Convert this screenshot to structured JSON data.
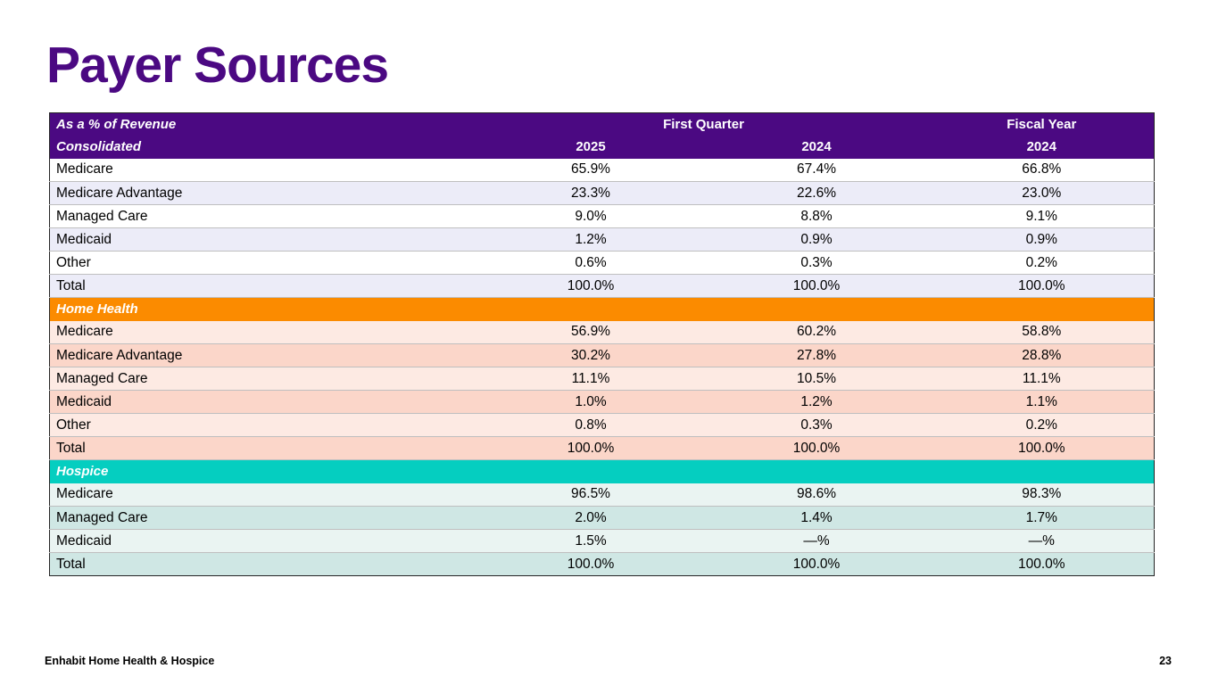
{
  "slide": {
    "title": "Payer Sources",
    "footer": {
      "company": "Enhabit Home Health & Hospice",
      "page_number": "23"
    }
  },
  "table": {
    "corner_label": "As a % of Revenue",
    "row2_label": "Consolidated",
    "column_groups": [
      {
        "label": "First Quarter",
        "span": 2
      },
      {
        "label": "Fiscal Year",
        "span": 1
      }
    ],
    "year_columns": [
      "2025",
      "2024",
      "2024"
    ],
    "sections": [
      {
        "id": "consolidated",
        "band_label": null,
        "rows": [
          {
            "label": "Medicare",
            "values": [
              "65.9%",
              "67.4%",
              "66.8%"
            ]
          },
          {
            "label": "Medicare Advantage",
            "values": [
              "23.3%",
              "22.6%",
              "23.0%"
            ]
          },
          {
            "label": "Managed Care",
            "values": [
              "9.0%",
              "8.8%",
              "9.1%"
            ]
          },
          {
            "label": "Medicaid",
            "values": [
              "1.2%",
              "0.9%",
              "0.9%"
            ]
          },
          {
            "label": "Other",
            "values": [
              "0.6%",
              "0.3%",
              "0.2%"
            ]
          },
          {
            "label": "Total",
            "values": [
              "100.0%",
              "100.0%",
              "100.0%"
            ]
          }
        ]
      },
      {
        "id": "home-health",
        "band_label": "Home Health",
        "rows": [
          {
            "label": "Medicare",
            "values": [
              "56.9%",
              "60.2%",
              "58.8%"
            ]
          },
          {
            "label": "Medicare Advantage",
            "values": [
              "30.2%",
              "27.8%",
              "28.8%"
            ]
          },
          {
            "label": "Managed Care",
            "values": [
              "11.1%",
              "10.5%",
              "11.1%"
            ]
          },
          {
            "label": "Medicaid",
            "values": [
              "1.0%",
              "1.2%",
              "1.1%"
            ]
          },
          {
            "label": "Other",
            "values": [
              "0.8%",
              "0.3%",
              "0.2%"
            ]
          },
          {
            "label": "Total",
            "values": [
              "100.0%",
              "100.0%",
              "100.0%"
            ]
          }
        ]
      },
      {
        "id": "hospice",
        "band_label": "Hospice",
        "rows": [
          {
            "label": "Medicare",
            "values": [
              "96.5%",
              "98.6%",
              "98.3%"
            ]
          },
          {
            "label": "Managed Care",
            "values": [
              "2.0%",
              "1.4%",
              "1.7%"
            ]
          },
          {
            "label": "Medicaid",
            "values": [
              "1.5%",
              "—%",
              "—%"
            ]
          },
          {
            "label": "Total",
            "values": [
              "100.0%",
              "100.0%",
              "100.0%"
            ]
          }
        ]
      }
    ]
  },
  "colors": {
    "title_purple": "#4B0982",
    "header_purple": "#4B0982",
    "home_health_orange": "#FB8B00",
    "hospice_teal": "#05CEC0",
    "row_white": "#FFFFFF",
    "row_lavender": "#ECECF8",
    "row_peach_light": "#FDEAE3",
    "row_peach_dark": "#FBD6C9",
    "row_teal_light": "#EAF4F2",
    "row_teal_dark": "#CFE7E4",
    "row_border": "#BFBFBF",
    "outer_border": "#262626"
  }
}
